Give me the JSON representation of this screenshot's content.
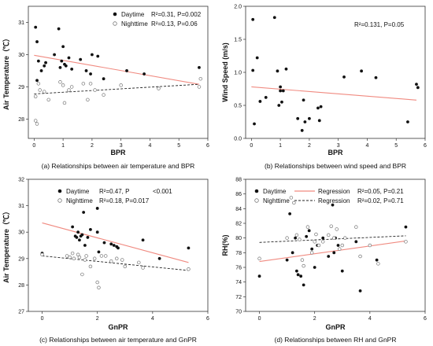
{
  "panels": [
    {
      "caption": "(a) Relationships between air temperature and BPR",
      "xlabel": "BPR",
      "ylabel": "Air Temperature（℃）",
      "xlim": [
        -0.2,
        6
      ],
      "ylim": [
        27.4,
        31.5
      ],
      "xticks": [
        "0",
        "1",
        "2",
        "3",
        "4",
        "5",
        "6"
      ],
      "yticks": [
        "28",
        "29",
        "30",
        "31"
      ],
      "legend": [
        {
          "label": "Daytime",
          "stat": "R²=0.31, P=0.002"
        },
        {
          "label": "Nighttime",
          "stat": "R²=0.13, P=0.06"
        }
      ]
    },
    {
      "caption": "(b) Relationships between wind speed and BPR",
      "xlabel": "BPR",
      "ylabel": "Wind Speed (m/s)",
      "xlim": [
        -0.2,
        6
      ],
      "ylim": [
        0,
        2
      ],
      "xticks": [
        "0",
        "1",
        "2",
        "3",
        "4",
        "5",
        "6"
      ],
      "yticks": [
        "0.0",
        "0.5",
        "1.0",
        "1.5",
        "2.0"
      ],
      "annotation": "R²=0.131, P=0.05"
    },
    {
      "caption": "(c) Relationships between air temperature and GnPR",
      "xlabel": "GnPR",
      "ylabel": "Air Temperature（℃）",
      "xlim": [
        -0.5,
        6
      ],
      "ylim": [
        27,
        32
      ],
      "xticks": [
        "0",
        "2",
        "4",
        "6"
      ],
      "yticks": [
        "27",
        "28",
        "29",
        "30",
        "31",
        "32"
      ],
      "legend": [
        {
          "label": "Daytime",
          "stat": "R²=0.47, P",
          "stat_extra": "<0.001"
        },
        {
          "label": "Nighttime",
          "stat": "R²=0.18, P=0.017"
        }
      ]
    },
    {
      "caption": "(d) Relationships between RH and GnPR",
      "xlabel": "GnPR",
      "ylabel": "RH(%)",
      "xlim": [
        -0.5,
        6
      ],
      "ylim": [
        70,
        88
      ],
      "xticks": [
        "0",
        "2",
        "4",
        "6"
      ],
      "yticks": [
        "70",
        "72",
        "74",
        "76",
        "78",
        "80",
        "82",
        "84",
        "86",
        "88"
      ],
      "legend": [
        {
          "label": "Daytime",
          "reg": "Regression",
          "stat": "R²=0.05, P=0.21"
        },
        {
          "label": "Nighttime",
          "reg": "Regression",
          "stat": "R²=0.02, P=0.71"
        }
      ]
    }
  ],
  "colors": {
    "regression": "#f08a80",
    "night_line": "#222222",
    "filled": "#111111",
    "hollow": "#777777"
  },
  "chart_data": [
    {
      "type": "scatter",
      "xlim": [
        -0.2,
        6
      ],
      "ylim": [
        27.4,
        31.5
      ],
      "series": [
        {
          "name": "Daytime",
          "x": [
            0.05,
            0.1,
            0.15,
            0.1,
            0.25,
            0.4,
            0.35,
            0.7,
            0.85,
            0.9,
            0.95,
            1.0,
            1.05,
            1.1,
            1.2,
            1.3,
            1.6,
            1.8,
            1.95,
            2.0,
            2.2,
            2.4,
            3.2,
            3.8,
            5.7
          ],
          "y": [
            30.85,
            30.4,
            29.8,
            29.2,
            29.5,
            29.75,
            29.65,
            30.0,
            30.8,
            29.6,
            29.8,
            30.25,
            29.7,
            29.65,
            29.9,
            29.55,
            29.85,
            29.5,
            29.4,
            30.0,
            29.95,
            29.25,
            29.5,
            29.4,
            29.6
          ]
        },
        {
          "name": "Nighttime",
          "x": [
            0.05,
            0.1,
            0.2,
            0.35,
            0.5,
            0.9,
            1.0,
            1.05,
            1.2,
            1.3,
            1.7,
            1.85,
            1.95,
            2.1,
            2.4,
            0.15,
            0.05,
            3.0,
            4.3,
            5.7,
            5.75
          ],
          "y": [
            27.95,
            27.85,
            28.9,
            28.85,
            28.6,
            29.15,
            29.05,
            28.5,
            28.9,
            29.0,
            29.1,
            28.6,
            29.1,
            28.9,
            28.75,
            29.1,
            28.7,
            29.05,
            28.95,
            29.0,
            29.25
          ]
        }
      ],
      "regression": {
        "daytime": [
          [
            0.0,
            29.98
          ],
          [
            5.7,
            29.08
          ]
        ],
        "nighttime": [
          [
            0.0,
            28.78
          ],
          [
            5.7,
            29.08
          ]
        ]
      }
    },
    {
      "type": "scatter",
      "xlim": [
        -0.2,
        6
      ],
      "ylim": [
        0,
        2
      ],
      "series": [
        {
          "name": "",
          "x": [
            0.05,
            0.05,
            0.1,
            0.2,
            0.3,
            0.5,
            0.8,
            0.9,
            0.95,
            1.0,
            1.0,
            1.05,
            1.1,
            1.2,
            1.6,
            1.75,
            1.8,
            1.85,
            2.0,
            2.3,
            2.35,
            2.4,
            3.2,
            3.8,
            4.3,
            5.4,
            5.7,
            5.75
          ],
          "y": [
            1.8,
            1.03,
            0.22,
            1.22,
            0.56,
            0.62,
            1.83,
            1.02,
            0.5,
            0.78,
            0.72,
            0.55,
            0.72,
            1.05,
            0.3,
            0.12,
            0.58,
            0.25,
            0.3,
            0.46,
            0.27,
            0.48,
            0.93,
            1.02,
            0.92,
            0.25,
            0.82,
            0.77
          ]
        }
      ],
      "regression": [
        [
          0.0,
          0.78
        ],
        [
          5.7,
          0.58
        ]
      ]
    },
    {
      "type": "scatter",
      "xlim": [
        -0.5,
        6
      ],
      "ylim": [
        27,
        32
      ],
      "series": [
        {
          "name": "Daytime",
          "x": [
            0.0,
            1.1,
            1.2,
            1.25,
            1.3,
            1.35,
            1.4,
            1.45,
            1.5,
            1.55,
            1.6,
            1.65,
            1.75,
            2.0,
            2.0,
            2.05,
            2.25,
            2.5,
            2.6,
            2.7,
            2.75,
            3.65,
            4.25,
            5.3
          ],
          "y": [
            29.2,
            30.2,
            29.85,
            29.8,
            30.0,
            29.7,
            29.85,
            29.9,
            30.75,
            29.5,
            29.1,
            29.8,
            30.1,
            30.9,
            30.0,
            29.25,
            29.6,
            29.55,
            29.5,
            29.45,
            29.4,
            29.7,
            29.0,
            29.4
          ]
        },
        {
          "name": "Nighttime",
          "x": [
            0.0,
            0.9,
            1.0,
            1.1,
            1.15,
            1.3,
            1.35,
            1.45,
            1.55,
            1.6,
            1.75,
            1.9,
            2.0,
            2.05,
            2.15,
            2.3,
            2.5,
            2.7,
            2.9,
            3.0,
            3.5,
            3.65,
            5.3
          ],
          "y": [
            29.15,
            29.1,
            29.05,
            29.2,
            29.0,
            29.15,
            29.05,
            28.4,
            28.95,
            29.1,
            28.7,
            29.0,
            28.1,
            27.9,
            29.1,
            29.1,
            28.9,
            29.0,
            28.95,
            28.7,
            28.85,
            28.65,
            28.6
          ]
        }
      ],
      "regression": {
        "daytime": [
          [
            0.0,
            30.35
          ],
          [
            5.3,
            28.85
          ]
        ],
        "nighttime": [
          [
            0.0,
            29.1
          ],
          [
            5.3,
            28.55
          ]
        ]
      }
    },
    {
      "type": "scatter",
      "xlim": [
        -0.5,
        6
      ],
      "ylim": [
        70,
        88
      ],
      "series": [
        {
          "name": "Daytime",
          "x": [
            0.0,
            1.0,
            1.1,
            1.2,
            1.3,
            1.35,
            1.4,
            1.5,
            1.6,
            1.7,
            1.8,
            1.9,
            2.0,
            2.1,
            2.3,
            2.5,
            2.65,
            2.7,
            2.75,
            2.85,
            3.0,
            3.5,
            3.65,
            4.25,
            5.3
          ],
          "y": [
            74.8,
            77.0,
            83.3,
            78.0,
            80.0,
            75.5,
            75.0,
            74.8,
            73.6,
            80.2,
            81.0,
            78.5,
            76.0,
            79.0,
            80.0,
            77.5,
            84.5,
            78.0,
            80.0,
            79.0,
            75.5,
            79.5,
            72.8,
            77.0,
            81.5
          ]
        },
        {
          "name": "Nighttime",
          "x": [
            0.0,
            1.0,
            1.15,
            1.25,
            1.35,
            1.45,
            1.55,
            1.6,
            1.75,
            1.9,
            2.0,
            2.05,
            2.15,
            2.3,
            2.5,
            2.6,
            2.7,
            2.8,
            2.9,
            3.0,
            3.1,
            3.5,
            3.65,
            4.0,
            4.3,
            5.3
          ],
          "y": [
            77.2,
            80.0,
            85.5,
            84.8,
            80.4,
            79.8,
            77.0,
            76.2,
            81.5,
            78.0,
            79.5,
            80.5,
            79.0,
            79.5,
            80.4,
            81.6,
            80.0,
            81.2,
            78.5,
            79.0,
            80.0,
            81.5,
            77.5,
            79.0,
            76.5,
            79.5
          ]
        }
      ],
      "regression": {
        "daytime": [
          [
            0.0,
            76.8
          ],
          [
            5.3,
            79.6
          ]
        ],
        "nighttime": [
          [
            0.0,
            79.4
          ],
          [
            5.3,
            80.3
          ]
        ]
      }
    }
  ]
}
